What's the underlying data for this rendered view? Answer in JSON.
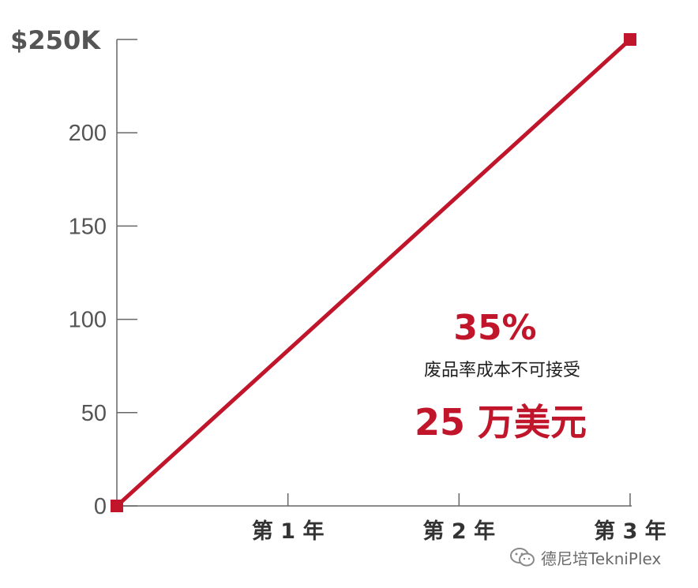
{
  "chart_data": {
    "type": "line",
    "x": [
      "0",
      "第 1 年",
      "第 2 年",
      "第 3 年"
    ],
    "series": [
      {
        "values": [
          0,
          83.33,
          166.67,
          250
        ],
        "color": "#c0152a"
      }
    ],
    "xticks": [
      "第 1 年",
      "第 2 年",
      "第 3 年"
    ],
    "yticks": [
      {
        "value": 0,
        "label": "0"
      },
      {
        "value": 50,
        "label": "50"
      },
      {
        "value": 100,
        "label": "100"
      },
      {
        "value": 150,
        "label": "150"
      },
      {
        "value": 200,
        "label": "200"
      },
      {
        "value": 250,
        "label": "$250K"
      }
    ],
    "ylim": [
      0,
      250
    ],
    "xlim": [
      0,
      3
    ],
    "grid": false,
    "annotation": {
      "percent": "35%",
      "text": "废品率成本不可接受",
      "amount": "25 万美元"
    }
  },
  "colors": {
    "accent": "#c0152a",
    "axis": "#666666",
    "tick_text": "#555555"
  },
  "watermark": {
    "icon": "wechat-icon",
    "text": "德尼培TekniPlex"
  }
}
